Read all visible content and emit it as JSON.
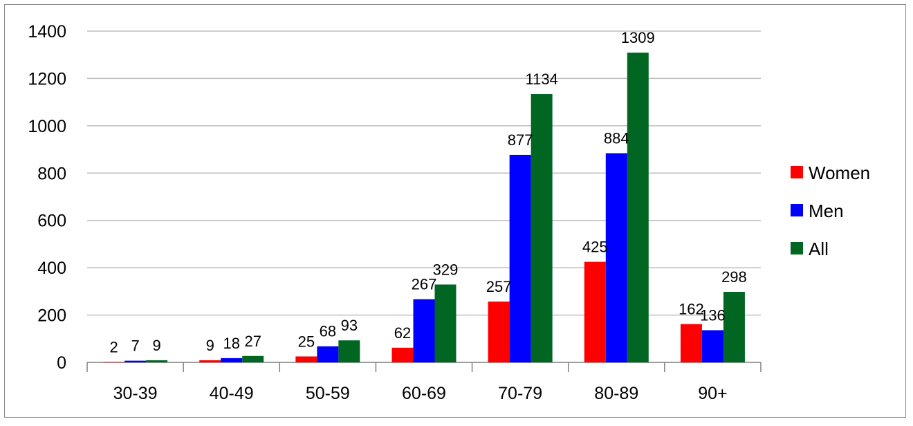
{
  "chart_data": {
    "type": "bar",
    "title": "",
    "xlabel": "",
    "ylabel": "",
    "categories": [
      "30-39",
      "40-49",
      "50-59",
      "60-69",
      "70-79",
      "80-89",
      "90+"
    ],
    "series": [
      {
        "name": "Women",
        "color": "#ff0000",
        "values": [
          2,
          9,
          25,
          62,
          257,
          425,
          162
        ]
      },
      {
        "name": "Men",
        "color": "#0000ff",
        "values": [
          7,
          18,
          68,
          267,
          877,
          884,
          136
        ]
      },
      {
        "name": "All",
        "color": "#006622",
        "values": [
          9,
          27,
          93,
          329,
          1134,
          1309,
          298
        ]
      }
    ],
    "ylim": [
      0,
      1400
    ],
    "yticks": [
      "0",
      "200",
      "400",
      "600",
      "800",
      "1000",
      "1200",
      "1400"
    ],
    "grid": true,
    "legend_position": "right"
  }
}
